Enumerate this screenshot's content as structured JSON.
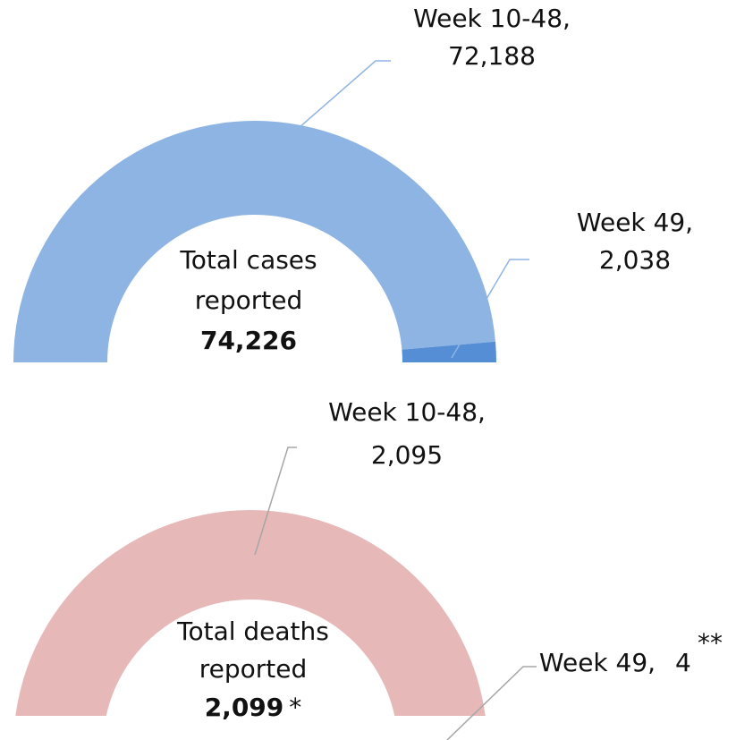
{
  "chart_data": [
    {
      "type": "half-donut",
      "categories": [
        "Week 10-48,",
        "Week 49,"
      ],
      "values": [
        72188,
        2038
      ],
      "value_labels": [
        "72,188",
        "2,038"
      ],
      "colors": [
        "#8eb4e3",
        "#558ed5"
      ],
      "center_label": [
        "Total cases",
        "reported"
      ],
      "total": 74226,
      "total_label": "74,226"
    },
    {
      "type": "half-donut",
      "categories": [
        "Week 10-48,",
        "Week 49,"
      ],
      "values": [
        2095,
        4
      ],
      "value_labels": [
        "2,095",
        "4"
      ],
      "colors": [
        "#e6b9b8",
        "#d99694"
      ],
      "center_label": [
        "Total deaths",
        "reported"
      ],
      "total": 2099,
      "total_label": "2,099",
      "total_note": "*",
      "annotation": "**"
    }
  ]
}
